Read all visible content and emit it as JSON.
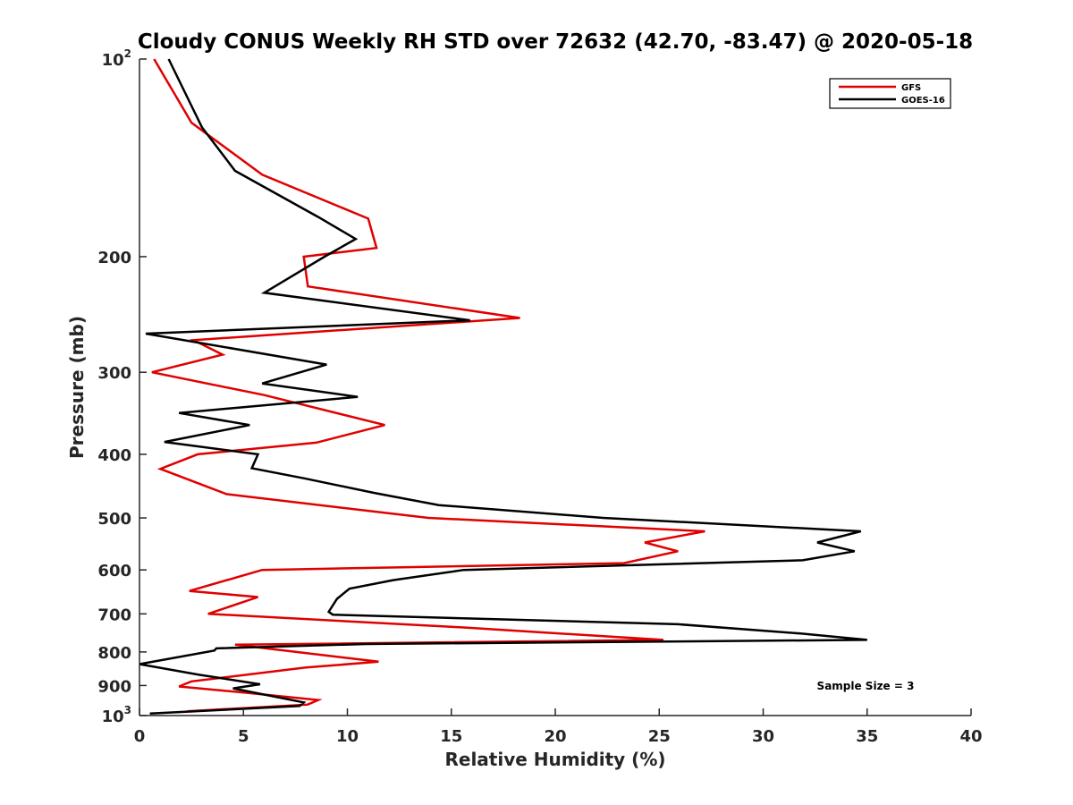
{
  "chart_data": {
    "type": "line",
    "title": "Cloudy CONUS Weekly RH STD over 72632 (42.70, -83.47) @ 2020-05-18",
    "xlabel": "Relative Humidity (%)",
    "ylabel": "Pressure (mb)",
    "xlim": [
      0,
      40
    ],
    "ylim": [
      100,
      1000
    ],
    "y_scale": "log",
    "y_reversed": true,
    "x_ticks": [
      0,
      5,
      10,
      15,
      20,
      25,
      30,
      35,
      40
    ],
    "x_tick_labels": [
      "0",
      "5",
      "10",
      "15",
      "20",
      "25",
      "30",
      "35",
      "40"
    ],
    "y_ticks": [
      {
        "value": 100,
        "base": "10",
        "sup": "2"
      },
      {
        "value": 200,
        "base": "200",
        "sup": ""
      },
      {
        "value": 300,
        "base": "300",
        "sup": ""
      },
      {
        "value": 400,
        "base": "400",
        "sup": ""
      },
      {
        "value": 500,
        "base": "500",
        "sup": ""
      },
      {
        "value": 600,
        "base": "600",
        "sup": ""
      },
      {
        "value": 700,
        "base": "700",
        "sup": ""
      },
      {
        "value": 800,
        "base": "800",
        "sup": ""
      },
      {
        "value": 900,
        "base": "900",
        "sup": ""
      },
      {
        "value": 1000,
        "base": "10",
        "sup": "3"
      }
    ],
    "grid": false,
    "legend_position": "top-right",
    "annotation": "Sample Size = 3",
    "series": [
      {
        "name": "GFS",
        "color": "#e00000",
        "points": [
          [
            0.7,
            100
          ],
          [
            2.5,
            125
          ],
          [
            5.9,
            150
          ],
          [
            11.0,
            175
          ],
          [
            11.4,
            194
          ],
          [
            7.9,
            200
          ],
          [
            8.1,
            222
          ],
          [
            18.3,
            248
          ],
          [
            2.6,
            268
          ],
          [
            4.0,
            282
          ],
          [
            0.6,
            300
          ],
          [
            6.0,
            325
          ],
          [
            11.8,
            361
          ],
          [
            8.5,
            384
          ],
          [
            2.8,
            400
          ],
          [
            1.0,
            421
          ],
          [
            4.2,
            460
          ],
          [
            13.9,
            500
          ],
          [
            27.2,
            524
          ],
          [
            24.3,
            545
          ],
          [
            25.9,
            562
          ],
          [
            23.3,
            586
          ],
          [
            5.9,
            600
          ],
          [
            2.4,
            646
          ],
          [
            5.7,
            660
          ],
          [
            3.3,
            700
          ],
          [
            15.5,
            734
          ],
          [
            25.2,
            767
          ],
          [
            4.6,
            780
          ],
          [
            11.5,
            828
          ],
          [
            8.0,
            845
          ],
          [
            2.5,
            887
          ],
          [
            1.9,
            903
          ],
          [
            4.8,
            921
          ],
          [
            8.6,
            947
          ],
          [
            8.1,
            962
          ],
          [
            2.3,
            985
          ]
        ]
      },
      {
        "name": "GOES-16",
        "color": "#000000",
        "points": [
          [
            1.4,
            100
          ],
          [
            3.0,
            127
          ],
          [
            4.6,
            148
          ],
          [
            8.6,
            174
          ],
          [
            10.4,
            188
          ],
          [
            8.9,
            200
          ],
          [
            6.0,
            227
          ],
          [
            15.9,
            250
          ],
          [
            0.3,
            262
          ],
          [
            9.0,
            292
          ],
          [
            5.9,
            312
          ],
          [
            10.5,
            327
          ],
          [
            1.9,
            346
          ],
          [
            5.3,
            361
          ],
          [
            1.2,
            383
          ],
          [
            5.7,
            400
          ],
          [
            5.4,
            420
          ],
          [
            7.9,
            435
          ],
          [
            11.3,
            458
          ],
          [
            14.4,
            478
          ],
          [
            22.3,
            500
          ],
          [
            34.7,
            524
          ],
          [
            32.6,
            545
          ],
          [
            34.4,
            562
          ],
          [
            31.9,
            580
          ],
          [
            15.6,
            600
          ],
          [
            12.2,
            622
          ],
          [
            10.1,
            641
          ],
          [
            9.5,
            664
          ],
          [
            9.1,
            695
          ],
          [
            9.3,
            702
          ],
          [
            25.9,
            726
          ],
          [
            31.8,
            750
          ],
          [
            35.0,
            767
          ],
          [
            10.9,
            778
          ],
          [
            3.7,
            790
          ],
          [
            3.6,
            796
          ],
          [
            0.0,
            835
          ],
          [
            2.8,
            866
          ],
          [
            5.8,
            896
          ],
          [
            4.5,
            909
          ],
          [
            7.9,
            955
          ],
          [
            7.7,
            967
          ],
          [
            0.5,
            993
          ]
        ]
      }
    ]
  }
}
